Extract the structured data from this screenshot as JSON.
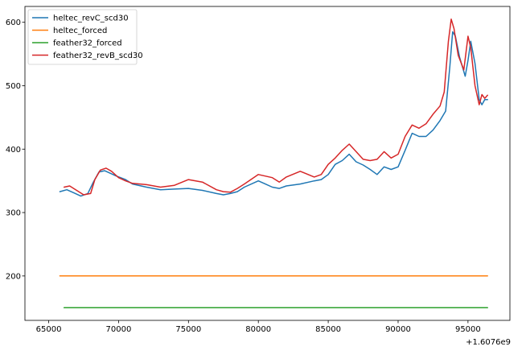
{
  "chart_data": {
    "type": "line",
    "title": "",
    "xlabel": "",
    "ylabel": "",
    "x_offset_label": "+1.6076e9",
    "xlim": [
      63300,
      98000
    ],
    "ylim": [
      130,
      625
    ],
    "x_ticks": [
      65000,
      70000,
      75000,
      80000,
      85000,
      90000,
      95000
    ],
    "x_tick_labels": [
      "65000",
      "70000",
      "75000",
      "80000",
      "85000",
      "90000",
      "95000"
    ],
    "y_ticks": [
      200,
      300,
      400,
      500,
      600
    ],
    "y_tick_labels": [
      "200",
      "300",
      "400",
      "500",
      "600"
    ],
    "grid": false,
    "legend_position": "upper-left",
    "series": [
      {
        "name": "heltec_revC_scd30",
        "color": "#1f77b4",
        "x": [
          65800,
          66300,
          66800,
          67300,
          67800,
          68200,
          68600,
          69000,
          69400,
          69800,
          70500,
          71000,
          72000,
          73000,
          74000,
          75000,
          76000,
          77000,
          77500,
          78000,
          78500,
          79000,
          80000,
          80500,
          81000,
          81500,
          82000,
          83000,
          84000,
          84500,
          85000,
          85500,
          86000,
          86500,
          87000,
          87500,
          88000,
          88500,
          89000,
          89500,
          90000,
          90500,
          91000,
          91500,
          92000,
          92500,
          93000,
          93400,
          93700,
          93900,
          94100,
          94400,
          94800,
          95000,
          95200,
          95500,
          95800,
          96000,
          96200,
          96400
        ],
        "y": [
          333,
          336,
          331,
          326,
          330,
          348,
          364,
          366,
          362,
          358,
          352,
          345,
          340,
          336,
          337,
          338,
          335,
          330,
          328,
          330,
          333,
          340,
          350,
          345,
          340,
          338,
          342,
          345,
          350,
          352,
          360,
          376,
          382,
          392,
          380,
          375,
          368,
          360,
          372,
          368,
          372,
          398,
          425,
          420,
          420,
          430,
          445,
          460,
          530,
          585,
          578,
          545,
          515,
          540,
          570,
          535,
          478,
          470,
          478,
          478
        ]
      },
      {
        "name": "heltec_forced",
        "color": "#ff7f0e",
        "x": [
          65800,
          96400
        ],
        "y": [
          200,
          200
        ]
      },
      {
        "name": "feather32_forced",
        "color": "#2ca02c",
        "x": [
          66100,
          96400
        ],
        "y": [
          150,
          150
        ]
      },
      {
        "name": "feather32_revB_scd30",
        "color": "#d62728",
        "x": [
          66100,
          66500,
          67000,
          67500,
          68000,
          68300,
          68700,
          69100,
          69500,
          70000,
          70500,
          71000,
          72000,
          73000,
          74000,
          75000,
          76000,
          77000,
          77500,
          78000,
          78500,
          79000,
          80000,
          81000,
          81500,
          82000,
          83000,
          84000,
          84500,
          85000,
          85500,
          86000,
          86500,
          87000,
          87500,
          88000,
          88500,
          89000,
          89500,
          90000,
          90500,
          91000,
          91500,
          92000,
          92500,
          93000,
          93300,
          93600,
          93800,
          94000,
          94300,
          94700,
          95000,
          95200,
          95500,
          95800,
          96000,
          96200,
          96400
        ],
        "y": [
          340,
          342,
          335,
          328,
          330,
          352,
          367,
          370,
          365,
          355,
          350,
          346,
          344,
          340,
          343,
          352,
          348,
          336,
          333,
          332,
          338,
          345,
          360,
          355,
          348,
          356,
          365,
          356,
          360,
          376,
          386,
          398,
          408,
          396,
          384,
          382,
          384,
          396,
          386,
          392,
          420,
          438,
          433,
          440,
          455,
          468,
          490,
          570,
          605,
          590,
          548,
          525,
          578,
          560,
          500,
          470,
          486,
          480,
          485
        ]
      }
    ]
  }
}
